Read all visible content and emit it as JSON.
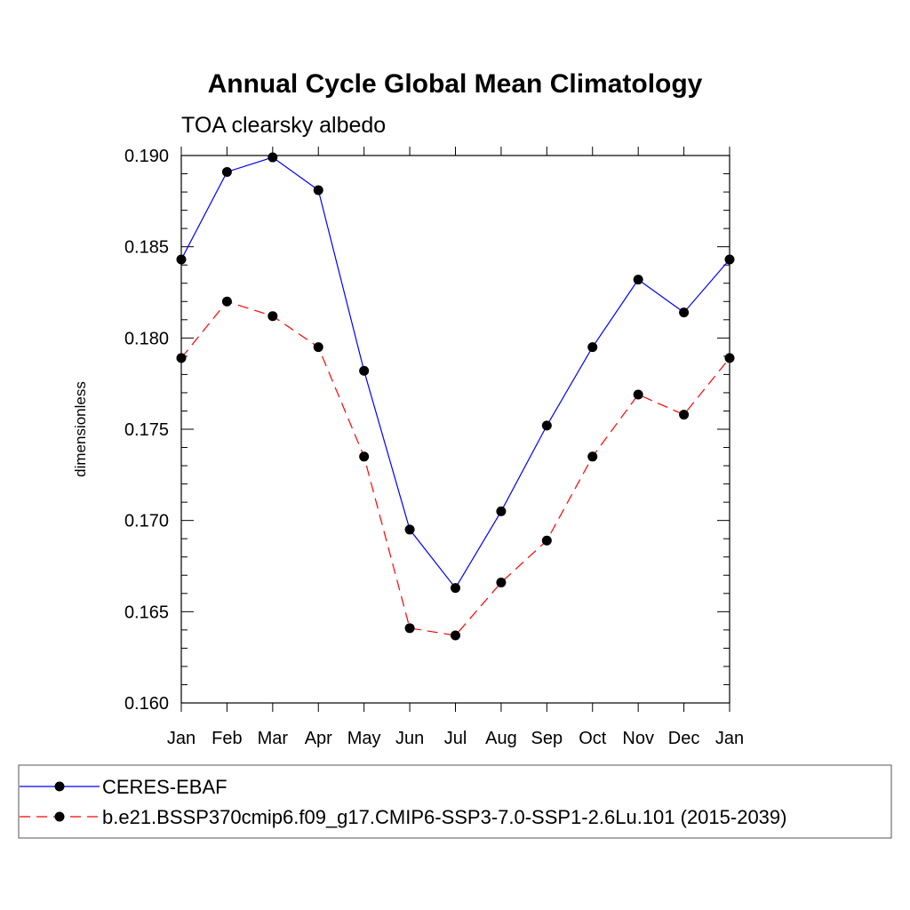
{
  "chart_data": {
    "type": "line",
    "title": "Annual Cycle Global Mean Climatology",
    "subtitle": "TOA clearsky albedo",
    "xlabel": "",
    "ylabel": "dimensionless",
    "categories": [
      "Jan",
      "Feb",
      "Mar",
      "Apr",
      "May",
      "Jun",
      "Jul",
      "Aug",
      "Sep",
      "Oct",
      "Nov",
      "Dec",
      "Jan"
    ],
    "ylim": [
      0.16,
      0.19
    ],
    "yticks": [
      "0.160",
      "0.165",
      "0.170",
      "0.175",
      "0.180",
      "0.185",
      "0.190"
    ],
    "grid": false,
    "legend_position": "bottom",
    "series": [
      {
        "name": "CERES-EBAF",
        "color": "#0000ff",
        "dash": "solid",
        "marker": "filled-circle",
        "values": [
          0.1843,
          0.1891,
          0.1899,
          0.1881,
          0.1782,
          0.1695,
          0.1663,
          0.1705,
          0.1752,
          0.1795,
          0.1832,
          0.1814,
          0.1843
        ]
      },
      {
        "name": "b.e21.BSSP370cmip6.f09_g17.CMIP6-SSP3-7.0-SSP1-2.6Lu.101 (2015-2039)",
        "color": "#ff0000",
        "dash": "dashed",
        "marker": "filled-circle",
        "values": [
          0.1789,
          0.182,
          0.1812,
          0.1795,
          0.1735,
          0.1641,
          0.1637,
          0.1666,
          0.1689,
          0.1735,
          0.1769,
          0.1758,
          0.1789
        ]
      }
    ]
  }
}
